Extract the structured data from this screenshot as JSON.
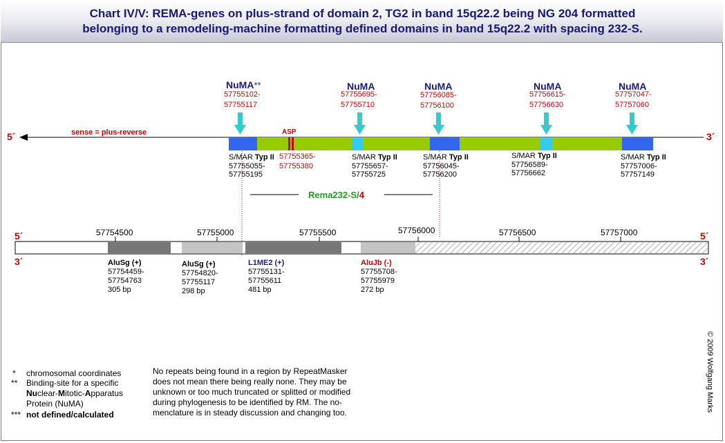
{
  "title": {
    "line1": "Chart IV/V: REMA-genes on plus-strand of domain 2, TG2 in band 15q22.2 being NG 204 formatted",
    "line2": "belonging to a remodeling-machine formatting defined domains in band 15q22.2 with spacing 232-S."
  },
  "strand": {
    "left_top": "5´",
    "right_top": "3´",
    "sense_label": "sense = plus-reverse",
    "ruler_left_top": "5´",
    "ruler_right_top": "5´",
    "ruler_left_bottom": "3´",
    "ruler_right_bottom": "3´"
  },
  "numa_sites": [
    {
      "label": "NuMA",
      "suffix": "**",
      "coord1": "57755102-",
      "coord2": "57755117"
    },
    {
      "label": "NuMA",
      "suffix": "",
      "coord1": "57755695-",
      "coord2": "57755710"
    },
    {
      "label": "NuMA",
      "suffix": "",
      "coord1": "57756085-",
      "coord2": "57756100"
    },
    {
      "label": "NuMA",
      "suffix": "",
      "coord1": "57756615-",
      "coord2": "57756630"
    },
    {
      "label": "NuMA",
      "suffix": "",
      "coord1": "57757047-",
      "coord2": "57757060"
    }
  ],
  "asp": {
    "label": "ASP",
    "coord1": "57755365-",
    "coord2": "57755380"
  },
  "smar": [
    {
      "pre": "S/MAR ",
      "typ": "Typ II",
      "coord1": "57755055-",
      "coord2": "57755195"
    },
    {
      "pre": "S/MAR ",
      "typ": "Typ II",
      "coord1": "57755657-",
      "coord2": "57755725"
    },
    {
      "pre": "S/MAR ",
      "typ": "Typ II",
      "coord1": "57756045-",
      "coord2": "57756200"
    },
    {
      "pre": "S/MAR ",
      "typ": "Typ II",
      "coord1": "57756589-",
      "coord2": "57756662"
    },
    {
      "pre": "S/MAR ",
      "typ": "Typ II",
      "coord1": "57757006-",
      "coord2": "57757149"
    }
  ],
  "rema": {
    "name": "Rema232-S/",
    "index": "4"
  },
  "ruler_ticks": [
    "57754500",
    "57755000",
    "57755500",
    "57756000",
    "57756500",
    "57757000"
  ],
  "repeats": [
    {
      "name": "AluSg (+)",
      "coord1": "57754459-",
      "coord2": "57754763",
      "size": "305 bp",
      "color": "#000000"
    },
    {
      "name": "AluSg (+)",
      "coord1": "57754820-",
      "coord2": "57755117",
      "size": "298 bp",
      "color": "#000000"
    },
    {
      "name": "L1ME2 (+)",
      "coord1": "57755131-",
      "coord2": "57755611",
      "size": "481 bp",
      "color": "#1a1a80"
    },
    {
      "name": "AluJb (-)",
      "coord1": "57755708-",
      "coord2": "57755979",
      "size": "272 bp",
      "color": "#cc0000"
    }
  ],
  "legend": {
    "star1_sym": "*",
    "star1_text": "chromosomal coordinates",
    "star2_sym": "**",
    "star2_text": "Binding-site for a specific",
    "numa_nu": "Nu",
    "numa_1": "clear-",
    "numa_m": "M",
    "numa_2": "itotic-",
    "numa_a": "A",
    "numa_3": "pparatus",
    "numa_line3": "Protein (NuMA)",
    "star3_sym": "***",
    "star3_text": "not defined/calculated"
  },
  "note": {
    "l1": "No repeats being found in a region by RepeatMasker",
    "l2": "does not mean there being really none. They may be",
    "l3": "unknown or too much truncated or splitted or modified",
    "l4": "during phylogenesis to be identified by RM. The no-",
    "l5": "menclature is in steady discussion and changing too."
  },
  "copyright": "© 2009 Wolfgang Marks",
  "colors": {
    "gene_green": "#99cc00",
    "smar_blue": "#3366ee",
    "numa_cyan": "#33cccc",
    "repeat_dark": "#777777",
    "repeat_light": "#c4c4c4",
    "title_navy": "#17187a"
  }
}
